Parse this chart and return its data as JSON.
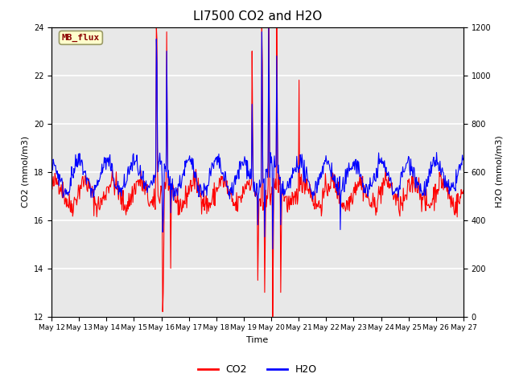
{
  "title": "LI7500 CO2 and H2O",
  "xlabel": "Time",
  "ylabel_left": "CO2 (mmol/m3)",
  "ylabel_right": "H2O (mmol/m3)",
  "ylim_left": [
    12,
    24
  ],
  "ylim_right": [
    0,
    1200
  ],
  "yticks_left": [
    12,
    14,
    16,
    18,
    20,
    22,
    24
  ],
  "yticks_right": [
    0,
    200,
    400,
    600,
    800,
    1000,
    1200
  ],
  "xtick_labels": [
    "May 12",
    "May 13",
    "May 14",
    "May 15",
    "May 16",
    "May 17",
    "May 18",
    "May 19",
    "May 20",
    "May 21",
    "May 22",
    "May 23",
    "May 24",
    "May 25",
    "May 26",
    "May 27"
  ],
  "legend_labels": [
    "CO2",
    "H2O"
  ],
  "legend_colors": [
    "red",
    "blue"
  ],
  "annotation_text": "MB_flux",
  "annotation_bg": "#ffffcc",
  "annotation_border": "#999966",
  "plot_bg": "#e8e8e8",
  "co2_color": "red",
  "h2o_color": "blue",
  "title_fontsize": 11,
  "axis_fontsize": 8,
  "tick_fontsize": 7,
  "legend_fontsize": 9
}
